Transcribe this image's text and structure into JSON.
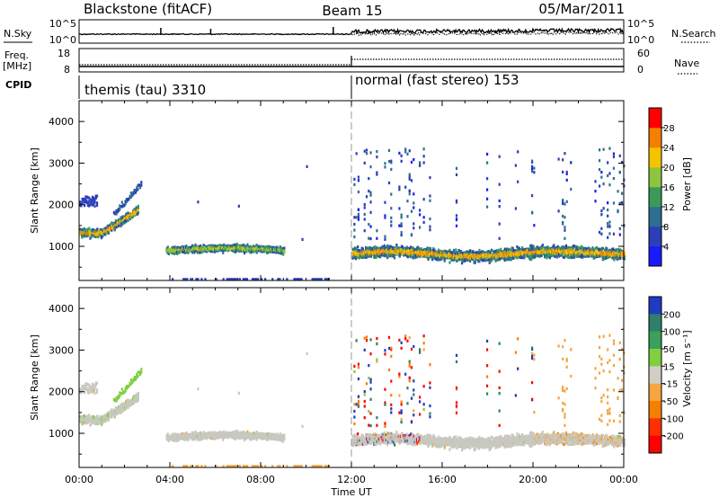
{
  "header": {
    "station": "Blackstone (fitACF)",
    "beam": "Beam 15",
    "date": "05/Mar/2011"
  },
  "summary": {
    "nsky_label": "N.Sky",
    "nsearch_label": "N.Search",
    "freq_label_line1": "Freq.",
    "freq_label_line2": "[MHz]",
    "nave_label": "Nave",
    "cpid_label": "CPID",
    "noise_ticks": [
      "10^5",
      "10^0"
    ],
    "freq_ticks": [
      "18",
      "8"
    ],
    "nave_ticks": [
      "60",
      "0"
    ],
    "modes": [
      {
        "name": "themis (tau) 3310",
        "start_hour": 0
      },
      {
        "name": "normal (fast stereo) 153",
        "start_hour": 12
      }
    ]
  },
  "chart_data": [
    {
      "type": "heatmap",
      "quantity": "power",
      "ylabel": "Slant Range [km]",
      "ylim": [
        180,
        4500
      ],
      "yticks": [
        "1000",
        "2000",
        "3000",
        "4000"
      ],
      "xlabel": "Time UT",
      "xlim_hours": [
        0,
        24
      ],
      "xticks": [
        "00:00",
        "04:00",
        "08:00",
        "12:00",
        "16:00",
        "20:00",
        "00:00"
      ],
      "colorbar": {
        "label": "Power [dB]",
        "ticks": [
          "4",
          "8",
          "12",
          "16",
          "20",
          "24",
          "28"
        ],
        "colors": [
          "#1a1aff",
          "#2a3fb8",
          "#2e6e8e",
          "#3a9a5a",
          "#8cc63f",
          "#f5c400",
          "#f57f00",
          "#ff0000"
        ]
      }
    },
    {
      "type": "heatmap",
      "quantity": "velocity",
      "ylabel": "Slant Range [km]",
      "ylim": [
        180,
        4500
      ],
      "yticks": [
        "1000",
        "2000",
        "3000",
        "4000"
      ],
      "xlabel": "Time UT",
      "xlim_hours": [
        0,
        24
      ],
      "xticks": [
        "00:00",
        "04:00",
        "08:00",
        "12:00",
        "16:00",
        "20:00",
        "00:00"
      ],
      "colorbar": {
        "label": "Velocity [m s⁻¹]",
        "ticks": [
          "200",
          "100",
          "50",
          "15",
          "-15",
          "-50",
          "-100",
          "-200"
        ],
        "colors": [
          "#1f3bbf",
          "#2e7f6b",
          "#3aa05a",
          "#7fcf3f",
          "#cfcfc8",
          "#f4a640",
          "#f57f00",
          "#ff3000",
          "#ff0000"
        ]
      }
    }
  ],
  "colors": {
    "gray_scatter": "#c8c8c0",
    "mode_divider": "#000000"
  }
}
